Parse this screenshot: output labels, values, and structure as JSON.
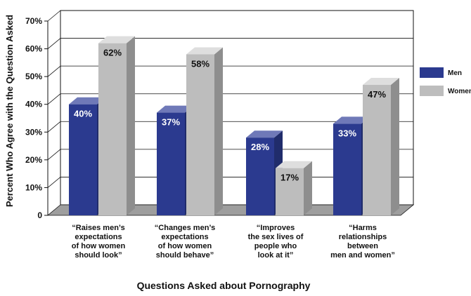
{
  "chart_data": {
    "type": "bar",
    "categories": [
      [
        "“Raises men’s",
        "expectations",
        "of how women",
        "should look”"
      ],
      [
        "“Changes men’s",
        "expectations",
        "of how women",
        "should behave”"
      ],
      [
        "“Improves",
        "the sex lives of",
        "people who",
        "look at it”"
      ],
      [
        "“Harms",
        "relationships",
        "between",
        "men and women”"
      ]
    ],
    "series": [
      {
        "name": "Men",
        "values": [
          40,
          37,
          28,
          33
        ],
        "labels": [
          "40%",
          "37%",
          "28%",
          "33%"
        ],
        "color": "#2b3a8f"
      },
      {
        "name": "Women",
        "values": [
          62,
          58,
          17,
          47
        ],
        "labels": [
          "62%",
          "58%",
          "17%",
          "47%"
        ],
        "color": "#bdbdbd"
      }
    ],
    "xlabel": "Questions Asked about Pornography",
    "ylabel": "Percent Who Agree with the Question Asked",
    "yticks": [
      "0",
      "10%",
      "20%",
      "30%",
      "40%",
      "50%",
      "60%",
      "70%"
    ],
    "ylim": [
      0,
      70
    ],
    "grid": true,
    "legend_position": "right"
  }
}
